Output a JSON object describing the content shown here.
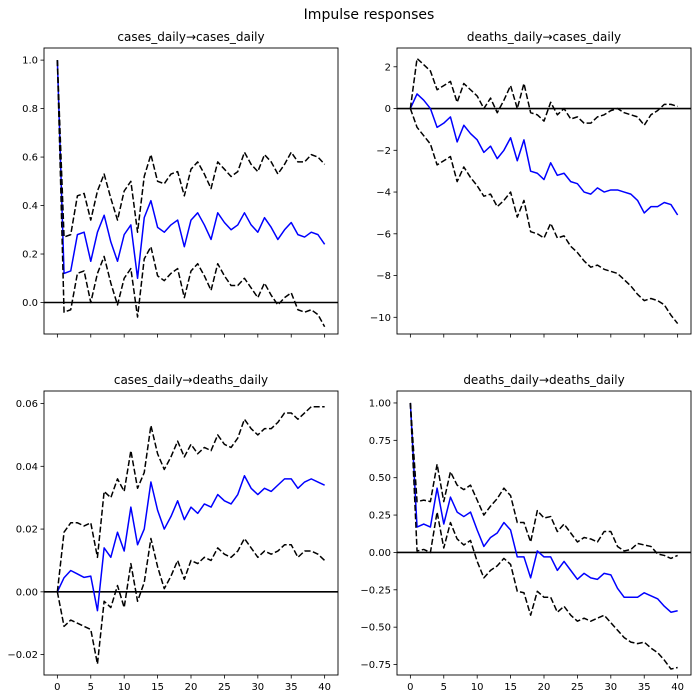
{
  "figure": {
    "suptitle": "Impulse responses"
  },
  "chart_data": [
    {
      "type": "line",
      "title": "cases_daily→cases_daily",
      "xlabel": "",
      "ylabel": "",
      "xlim": [
        -2,
        42
      ],
      "ylim": [
        -0.13,
        1.05
      ],
      "yticks": [
        0.0,
        0.2,
        0.4,
        0.6,
        0.8,
        1.0
      ],
      "ytick_labels": [
        "0.0",
        "0.2",
        "0.4",
        "0.6",
        "0.8",
        "1.0"
      ],
      "xticks": [
        0,
        5,
        10,
        15,
        20,
        25,
        30,
        35,
        40
      ],
      "xtick_labels": [
        "",
        "",
        "",
        "",
        "",
        "",
        "",
        "",
        ""
      ],
      "zero_line": 0,
      "grid": false,
      "x": [
        0,
        1,
        2,
        3,
        4,
        5,
        6,
        7,
        8,
        9,
        10,
        11,
        12,
        13,
        14,
        15,
        16,
        17,
        18,
        19,
        20,
        21,
        22,
        23,
        24,
        25,
        26,
        27,
        28,
        29,
        30,
        31,
        32,
        33,
        34,
        35,
        36,
        37,
        38,
        39,
        40
      ],
      "series": [
        {
          "role": "irf",
          "color": "#0000ff",
          "dash": "solid",
          "values": [
            1.0,
            0.12,
            0.13,
            0.28,
            0.29,
            0.17,
            0.29,
            0.36,
            0.25,
            0.17,
            0.28,
            0.32,
            0.1,
            0.35,
            0.42,
            0.31,
            0.29,
            0.32,
            0.34,
            0.23,
            0.34,
            0.37,
            0.32,
            0.26,
            0.37,
            0.33,
            0.3,
            0.32,
            0.37,
            0.32,
            0.29,
            0.35,
            0.31,
            0.26,
            0.3,
            0.33,
            0.28,
            0.27,
            0.29,
            0.28,
            0.24
          ]
        },
        {
          "role": "upper",
          "color": "#000000",
          "dash": "dashed",
          "values": [
            1.0,
            0.27,
            0.28,
            0.44,
            0.45,
            0.34,
            0.46,
            0.53,
            0.43,
            0.34,
            0.46,
            0.5,
            0.29,
            0.52,
            0.61,
            0.5,
            0.49,
            0.53,
            0.54,
            0.44,
            0.55,
            0.58,
            0.53,
            0.47,
            0.58,
            0.55,
            0.52,
            0.54,
            0.62,
            0.57,
            0.54,
            0.61,
            0.58,
            0.53,
            0.57,
            0.62,
            0.58,
            0.58,
            0.61,
            0.6,
            0.57
          ]
        },
        {
          "role": "lower",
          "color": "#000000",
          "dash": "dashed",
          "values": [
            1.0,
            -0.04,
            -0.03,
            0.12,
            0.13,
            0.0,
            0.12,
            0.19,
            0.08,
            -0.01,
            0.1,
            0.14,
            -0.06,
            0.18,
            0.23,
            0.11,
            0.09,
            0.12,
            0.14,
            0.02,
            0.13,
            0.16,
            0.11,
            0.05,
            0.16,
            0.11,
            0.07,
            0.07,
            0.1,
            0.06,
            0.02,
            0.08,
            0.03,
            -0.01,
            0.02,
            0.04,
            -0.03,
            -0.04,
            -0.03,
            -0.05,
            -0.1
          ]
        }
      ]
    },
    {
      "type": "line",
      "title": "deaths_daily→cases_daily",
      "xlabel": "",
      "ylabel": "",
      "xlim": [
        -2,
        42
      ],
      "ylim": [
        -10.8,
        2.9
      ],
      "yticks": [
        -10,
        -8,
        -6,
        -4,
        -2,
        0,
        2
      ],
      "ytick_labels": [
        "−10",
        "−8",
        "−6",
        "−4",
        "−2",
        "0",
        "2"
      ],
      "xticks": [
        0,
        5,
        10,
        15,
        20,
        25,
        30,
        35,
        40
      ],
      "xtick_labels": [
        "",
        "",
        "",
        "",
        "",
        "",
        "",
        "",
        ""
      ],
      "zero_line": 0,
      "grid": false,
      "x": [
        0,
        1,
        2,
        3,
        4,
        5,
        6,
        7,
        8,
        9,
        10,
        11,
        12,
        13,
        14,
        15,
        16,
        17,
        18,
        19,
        20,
        21,
        22,
        23,
        24,
        25,
        26,
        27,
        28,
        29,
        30,
        31,
        32,
        33,
        34,
        35,
        36,
        37,
        38,
        39,
        40
      ],
      "series": [
        {
          "role": "irf",
          "color": "#0000ff",
          "dash": "solid",
          "values": [
            0.0,
            0.7,
            0.4,
            0.0,
            -0.9,
            -0.7,
            -0.4,
            -1.6,
            -0.8,
            -1.2,
            -1.5,
            -2.1,
            -1.8,
            -2.4,
            -2.0,
            -1.4,
            -2.5,
            -1.5,
            -3.0,
            -3.1,
            -3.4,
            -2.6,
            -3.2,
            -3.1,
            -3.5,
            -3.6,
            -4.0,
            -4.1,
            -3.8,
            -4.0,
            -3.9,
            -3.9,
            -4.0,
            -4.1,
            -4.4,
            -5.0,
            -4.7,
            -4.7,
            -4.5,
            -4.6,
            -5.1
          ]
        },
        {
          "role": "upper",
          "color": "#000000",
          "dash": "dashed",
          "values": [
            0.0,
            2.4,
            2.1,
            1.8,
            0.9,
            1.1,
            1.3,
            0.3,
            1.2,
            0.9,
            0.6,
            0.0,
            0.5,
            -0.2,
            0.4,
            1.1,
            0.0,
            1.2,
            -0.2,
            -0.3,
            -0.6,
            0.3,
            -0.3,
            0.0,
            -0.5,
            -0.4,
            -0.7,
            -0.7,
            -0.4,
            -0.3,
            -0.1,
            0.0,
            -0.2,
            -0.3,
            -0.4,
            -0.8,
            -0.3,
            -0.1,
            0.2,
            0.2,
            0.1
          ]
        },
        {
          "role": "lower",
          "color": "#000000",
          "dash": "dashed",
          "values": [
            0.0,
            -0.9,
            -1.3,
            -1.7,
            -2.7,
            -2.5,
            -2.3,
            -3.5,
            -2.8,
            -3.3,
            -3.7,
            -4.2,
            -4.1,
            -4.7,
            -4.4,
            -4.0,
            -5.2,
            -4.4,
            -5.9,
            -6.0,
            -6.2,
            -5.5,
            -6.2,
            -6.1,
            -6.6,
            -6.9,
            -7.3,
            -7.6,
            -7.5,
            -7.7,
            -7.8,
            -7.9,
            -8.2,
            -8.5,
            -8.9,
            -9.2,
            -9.1,
            -9.2,
            -9.4,
            -9.9,
            -10.3
          ]
        }
      ]
    },
    {
      "type": "line",
      "title": "cases_daily→deaths_daily",
      "xlabel": "",
      "ylabel": "",
      "xlim": [
        -2,
        42
      ],
      "ylim": [
        -0.0265,
        0.064
      ],
      "yticks": [
        -0.02,
        0.0,
        0.02,
        0.04,
        0.06
      ],
      "ytick_labels": [
        "−0.02",
        "0.00",
        "0.02",
        "0.04",
        "0.06"
      ],
      "xticks": [
        0,
        5,
        10,
        15,
        20,
        25,
        30,
        35,
        40
      ],
      "xtick_labels": [
        "0",
        "5",
        "10",
        "15",
        "20",
        "25",
        "30",
        "35",
        "40"
      ],
      "zero_line": 0,
      "grid": false,
      "x": [
        0,
        1,
        2,
        3,
        4,
        5,
        6,
        7,
        8,
        9,
        10,
        11,
        12,
        13,
        14,
        15,
        16,
        17,
        18,
        19,
        20,
        21,
        22,
        23,
        24,
        25,
        26,
        27,
        28,
        29,
        30,
        31,
        32,
        33,
        34,
        35,
        36,
        37,
        38,
        39,
        40
      ],
      "series": [
        {
          "role": "irf",
          "color": "#0000ff",
          "dash": "solid",
          "values": [
            0.0,
            0.0045,
            0.0068,
            0.0057,
            0.0046,
            0.005,
            -0.006,
            0.014,
            0.011,
            0.019,
            0.013,
            0.027,
            0.015,
            0.02,
            0.035,
            0.026,
            0.02,
            0.024,
            0.029,
            0.023,
            0.027,
            0.025,
            0.028,
            0.027,
            0.031,
            0.029,
            0.028,
            0.031,
            0.037,
            0.033,
            0.031,
            0.033,
            0.032,
            0.034,
            0.036,
            0.036,
            0.033,
            0.035,
            0.036,
            0.035,
            0.034
          ]
        },
        {
          "role": "upper",
          "color": "#000000",
          "dash": "dashed",
          "values": [
            0.0,
            0.019,
            0.022,
            0.022,
            0.021,
            0.022,
            0.011,
            0.032,
            0.03,
            0.036,
            0.032,
            0.045,
            0.033,
            0.038,
            0.053,
            0.044,
            0.039,
            0.043,
            0.048,
            0.043,
            0.047,
            0.044,
            0.046,
            0.045,
            0.05,
            0.047,
            0.046,
            0.049,
            0.055,
            0.052,
            0.05,
            0.052,
            0.052,
            0.054,
            0.057,
            0.057,
            0.055,
            0.057,
            0.059,
            0.059,
            0.059
          ]
        },
        {
          "role": "lower",
          "color": "#000000",
          "dash": "dashed",
          "values": [
            0.0,
            -0.011,
            -0.009,
            -0.01,
            -0.011,
            -0.012,
            -0.023,
            -0.003,
            -0.005,
            0.002,
            -0.005,
            0.009,
            -0.003,
            0.003,
            0.017,
            0.008,
            0.001,
            0.005,
            0.01,
            0.004,
            0.01,
            0.009,
            0.011,
            0.01,
            0.014,
            0.012,
            0.011,
            0.013,
            0.017,
            0.014,
            0.011,
            0.013,
            0.012,
            0.013,
            0.015,
            0.015,
            0.011,
            0.013,
            0.013,
            0.012,
            0.01
          ]
        }
      ]
    },
    {
      "type": "line",
      "title": "deaths_daily→deaths_daily",
      "xlabel": "",
      "ylabel": "",
      "xlim": [
        -2,
        42
      ],
      "ylim": [
        -0.82,
        1.08
      ],
      "yticks": [
        -0.75,
        -0.5,
        -0.25,
        0.0,
        0.25,
        0.5,
        0.75,
        1.0
      ],
      "ytick_labels": [
        "−0.75",
        "−0.50",
        "−0.25",
        "0.00",
        "0.25",
        "0.50",
        "0.75",
        "1.00"
      ],
      "xticks": [
        0,
        5,
        10,
        15,
        20,
        25,
        30,
        35,
        40
      ],
      "xtick_labels": [
        "0",
        "5",
        "10",
        "15",
        "20",
        "25",
        "30",
        "35",
        "40"
      ],
      "zero_line": 0,
      "grid": false,
      "x": [
        0,
        1,
        2,
        3,
        4,
        5,
        6,
        7,
        8,
        9,
        10,
        11,
        12,
        13,
        14,
        15,
        16,
        17,
        18,
        19,
        20,
        21,
        22,
        23,
        24,
        25,
        26,
        27,
        28,
        29,
        30,
        31,
        32,
        33,
        34,
        35,
        36,
        37,
        38,
        39,
        40
      ],
      "series": [
        {
          "role": "irf",
          "color": "#0000ff",
          "dash": "solid",
          "values": [
            1.0,
            0.17,
            0.19,
            0.17,
            0.43,
            0.19,
            0.37,
            0.27,
            0.24,
            0.27,
            0.15,
            0.04,
            0.1,
            0.13,
            0.2,
            0.15,
            -0.03,
            -0.03,
            -0.17,
            0.01,
            -0.03,
            -0.03,
            -0.12,
            -0.06,
            -0.12,
            -0.18,
            -0.14,
            -0.17,
            -0.18,
            -0.14,
            -0.15,
            -0.24,
            -0.3,
            -0.3,
            -0.3,
            -0.27,
            -0.29,
            -0.31,
            -0.36,
            -0.4,
            -0.39
          ]
        },
        {
          "role": "upper",
          "color": "#000000",
          "dash": "dashed",
          "values": [
            1.0,
            0.34,
            0.35,
            0.34,
            0.59,
            0.34,
            0.54,
            0.45,
            0.42,
            0.45,
            0.35,
            0.25,
            0.31,
            0.36,
            0.43,
            0.38,
            0.2,
            0.2,
            0.07,
            0.28,
            0.23,
            0.24,
            0.14,
            0.19,
            0.13,
            0.07,
            0.1,
            0.09,
            0.07,
            0.14,
            0.14,
            0.04,
            0.01,
            0.02,
            0.06,
            0.05,
            0.04,
            -0.01,
            -0.02,
            -0.04,
            -0.02
          ]
        },
        {
          "role": "lower",
          "color": "#000000",
          "dash": "dashed",
          "values": [
            1.0,
            0.01,
            0.02,
            0.0,
            0.27,
            0.03,
            0.2,
            0.09,
            0.05,
            0.08,
            -0.06,
            -0.17,
            -0.12,
            -0.09,
            -0.04,
            -0.08,
            -0.26,
            -0.27,
            -0.42,
            -0.26,
            -0.3,
            -0.3,
            -0.4,
            -0.36,
            -0.42,
            -0.46,
            -0.44,
            -0.46,
            -0.44,
            -0.42,
            -0.47,
            -0.52,
            -0.57,
            -0.6,
            -0.61,
            -0.6,
            -0.64,
            -0.67,
            -0.72,
            -0.78,
            -0.77
          ]
        }
      ]
    }
  ]
}
